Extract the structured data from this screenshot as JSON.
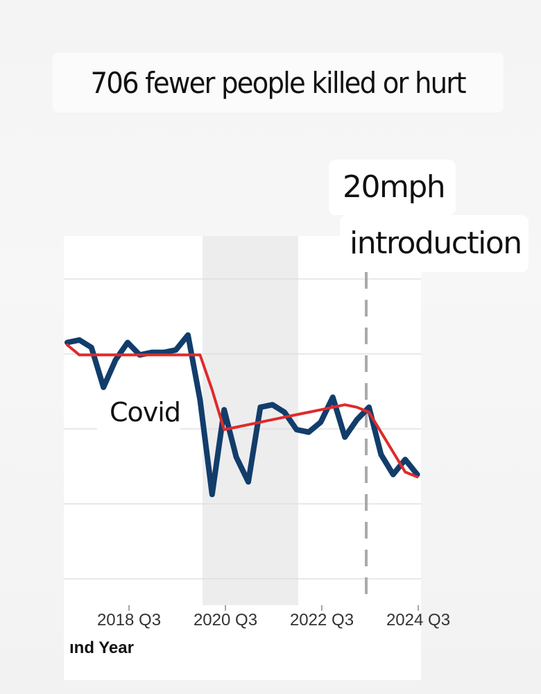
{
  "headline": "706 fewer people killed or hurt",
  "annotations": {
    "intro_line1": "20mph",
    "intro_line2": "introduction",
    "covid": "Covid"
  },
  "chart_data": {
    "type": "line",
    "x_tick_labels": [
      "2018 Q3",
      "2020 Q3",
      "2022 Q3",
      "2024 Q3"
    ],
    "x_axis_label": "ınd Year",
    "shaded_period": {
      "start": "2020 Q1",
      "end": "2022 Q1"
    },
    "vertical_marker": "2023 Q4",
    "colors": {
      "series": "#123d6b",
      "trend": "#e02a2a",
      "marker": "#aaaaaa",
      "shade": "#ededed"
    },
    "series": [
      {
        "values": [
          0.91,
          0.92,
          0.89,
          0.73,
          0.84,
          0.91,
          0.86,
          0.87,
          0.87,
          0.88,
          0.94,
          0.68,
          0.3,
          0.64,
          0.45,
          0.35,
          0.65,
          0.66,
          0.63,
          0.56,
          0.55,
          0.59,
          0.69,
          0.53,
          0.6,
          0.65,
          0.46,
          0.38,
          0.44,
          0.38
        ]
      },
      {
        "values": [
          0.9,
          0.86,
          0.86,
          0.86,
          0.86,
          0.86,
          0.86,
          0.86,
          0.86,
          0.86,
          0.86,
          0.86,
          0.72,
          0.56,
          0.57,
          0.58,
          0.59,
          0.6,
          0.61,
          0.62,
          0.63,
          0.64,
          0.65,
          0.66,
          0.65,
          0.63,
          0.55,
          0.47,
          0.39,
          0.37
        ]
      }
    ]
  }
}
